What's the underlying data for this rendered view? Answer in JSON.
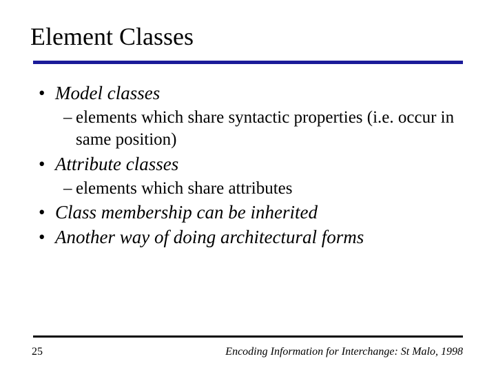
{
  "slide": {
    "title": "Element Classes",
    "title_fontsize": 36,
    "title_rule_color": "#1b1b99",
    "title_rule_height": 5,
    "bullets": [
      {
        "level": 1,
        "text": "Model classes",
        "italic": true
      },
      {
        "level": 2,
        "text": "elements which share syntactic properties (i.e. occur in same position)",
        "italic": false
      },
      {
        "level": 1,
        "text": "Attribute classes",
        "italic": true
      },
      {
        "level": 2,
        "text": "elements which  share attributes",
        "italic": false
      },
      {
        "level": 1,
        "text": "Class membership can be inherited",
        "italic": true
      },
      {
        "level": 1,
        "text": "Another way of doing architectural forms",
        "italic": true
      }
    ],
    "bullet1_fontsize": 27,
    "bullet2_fontsize": 25,
    "bullet1_marker": "•",
    "bullet2_marker": "–",
    "text_color": "#000000",
    "background_color": "#ffffff"
  },
  "footer": {
    "page_number": "25",
    "text": "Encoding Information for Interchange: St Malo, 1998",
    "rule_color": "#000000",
    "rule_height": 3,
    "fontsize": 16
  }
}
